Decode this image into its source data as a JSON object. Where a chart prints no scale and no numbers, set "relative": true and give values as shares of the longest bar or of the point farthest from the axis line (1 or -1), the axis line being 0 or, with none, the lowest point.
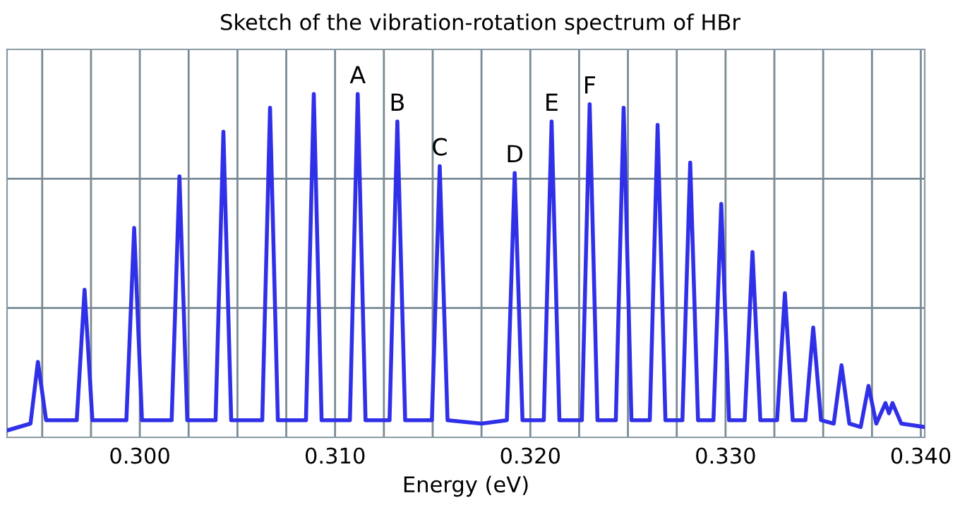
{
  "chart_data": {
    "type": "line",
    "title": "Sketch of the vibration-rotation spectrum of HBr",
    "xlabel": "Energy (eV)",
    "relative": true,
    "grid": true,
    "marker": "none",
    "line_style": "solid",
    "xlim": [
      0.2932,
      0.3402
    ],
    "xticks": [
      {
        "value": 0.295,
        "label": null
      },
      {
        "value": 0.2975,
        "label": null
      },
      {
        "value": 0.3,
        "label": "0.300"
      },
      {
        "value": 0.3025,
        "label": null
      },
      {
        "value": 0.305,
        "label": null
      },
      {
        "value": 0.3075,
        "label": null
      },
      {
        "value": 0.31,
        "label": "0.310"
      },
      {
        "value": 0.3125,
        "label": null
      },
      {
        "value": 0.315,
        "label": null
      },
      {
        "value": 0.3175,
        "label": null
      },
      {
        "value": 0.32,
        "label": "0.320"
      },
      {
        "value": 0.3225,
        "label": null
      },
      {
        "value": 0.325,
        "label": null
      },
      {
        "value": 0.3275,
        "label": null
      },
      {
        "value": 0.33,
        "label": "0.330"
      },
      {
        "value": 0.3325,
        "label": null
      },
      {
        "value": 0.335,
        "label": null
      },
      {
        "value": 0.3375,
        "label": null
      },
      {
        "value": 0.34,
        "label": "0.340"
      }
    ],
    "x": [
      0.2932,
      0.2944,
      0.29478,
      0.2952,
      0.29677,
      0.29717,
      0.29757,
      0.29931,
      0.29971,
      0.30011,
      0.30163,
      0.30203,
      0.30243,
      0.30388,
      0.30428,
      0.30468,
      0.30627,
      0.30667,
      0.30707,
      0.30851,
      0.30891,
      0.30931,
      0.31076,
      0.31116,
      0.31156,
      0.31279,
      0.31319,
      0.31359,
      0.31496,
      0.31536,
      0.31576,
      0.3175,
      0.3188,
      0.3192,
      0.3196,
      0.32069,
      0.32109,
      0.32149,
      0.32264,
      0.32304,
      0.32344,
      0.32438,
      0.32478,
      0.32518,
      0.32612,
      0.32652,
      0.32692,
      0.32779,
      0.32819,
      0.32859,
      0.32938,
      0.32978,
      0.33018,
      0.33098,
      0.33138,
      0.33178,
      0.33264,
      0.33304,
      0.33344,
      0.33409,
      0.33449,
      0.33489,
      0.33554,
      0.33594,
      0.33634,
      0.33692,
      0.33732,
      0.33772,
      0.33819,
      0.33837,
      0.33855,
      0.339,
      0.3402
    ],
    "series": [
      {
        "color": "#3030e8",
        "values": [
          0.02,
          0.04,
          0.22,
          0.05,
          0.05,
          0.43,
          0.05,
          0.05,
          0.61,
          0.05,
          0.05,
          0.76,
          0.05,
          0.05,
          0.89,
          0.05,
          0.05,
          0.96,
          0.05,
          0.05,
          1.0,
          0.05,
          0.05,
          1.0,
          0.05,
          0.05,
          0.92,
          0.05,
          0.05,
          0.79,
          0.05,
          0.04,
          0.05,
          0.77,
          0.05,
          0.05,
          0.92,
          0.05,
          0.05,
          0.97,
          0.05,
          0.05,
          0.96,
          0.05,
          0.05,
          0.91,
          0.05,
          0.05,
          0.8,
          0.05,
          0.05,
          0.68,
          0.05,
          0.05,
          0.54,
          0.05,
          0.05,
          0.42,
          0.05,
          0.05,
          0.32,
          0.05,
          0.04,
          0.21,
          0.04,
          0.03,
          0.15,
          0.04,
          0.1,
          0.07,
          0.1,
          0.04,
          0.03
        ]
      }
    ],
    "annotations": [
      {
        "text": "A",
        "x": 0.31116,
        "y": 1.0
      },
      {
        "text": "B",
        "x": 0.31319,
        "y": 0.92
      },
      {
        "text": "C",
        "x": 0.31536,
        "y": 0.79
      },
      {
        "text": "D",
        "x": 0.3192,
        "y": 0.77
      },
      {
        "text": "E",
        "x": 0.32109,
        "y": 0.92
      },
      {
        "text": "F",
        "x": 0.32304,
        "y": 0.97
      }
    ]
  }
}
